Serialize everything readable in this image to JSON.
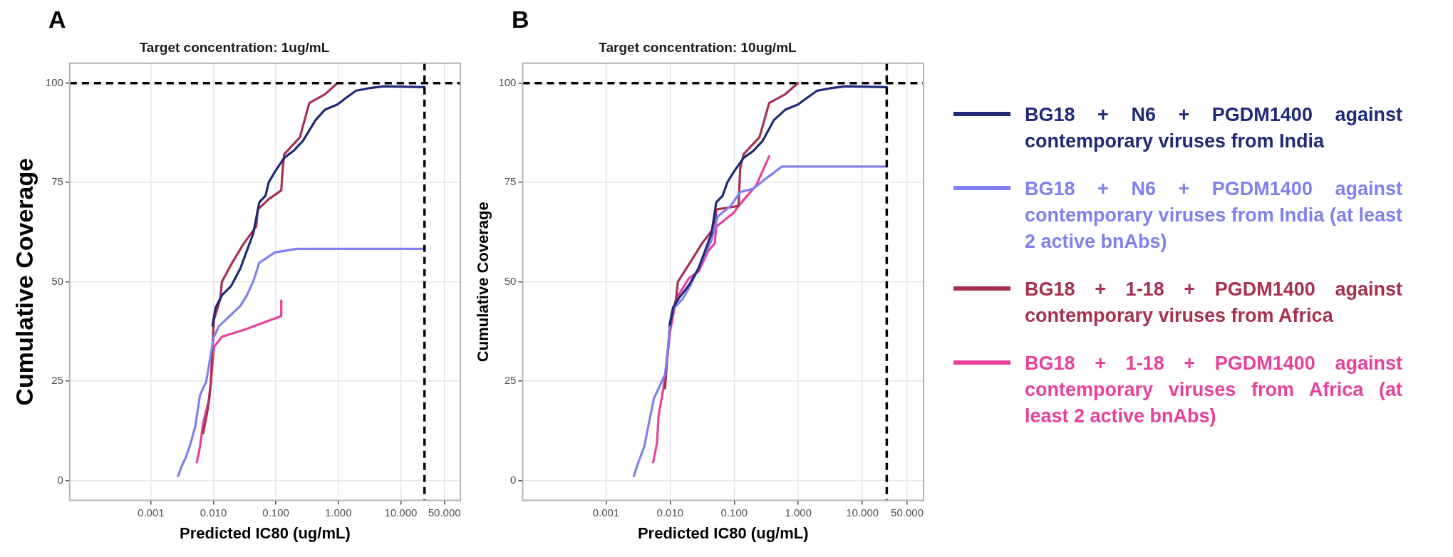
{
  "chart_data": [
    {
      "type": "line",
      "title": "Target concentration: 1ug/mL",
      "xlabel": "Predicted IC80 (ug/mL)",
      "ylabel": "Cumulative Coverage",
      "annotations": [
        "A"
      ],
      "log": "x",
      "grid": true,
      "legend": false,
      "line_style": "solid",
      "marker": "none",
      "xlim": [
        5e-05,
        90
      ],
      "xticks": [
        {
          "value": 0.001,
          "label": "0.001"
        },
        {
          "value": 0.01,
          "label": "0.010"
        },
        {
          "value": 0.1,
          "label": "0.100"
        },
        {
          "value": 1,
          "label": "1.000"
        },
        {
          "value": 10,
          "label": "10.000"
        },
        {
          "value": 50,
          "label": "50.000"
        }
      ],
      "ylim": [
        -5,
        105
      ],
      "yticks": [
        0,
        25,
        50,
        75,
        100
      ],
      "ref_lines": [
        {
          "axis": "y",
          "value": 100,
          "color": "#000000",
          "line_style": "dashed"
        },
        {
          "axis": "x",
          "value": 24,
          "color": "#000000",
          "line_style": "dashed"
        }
      ],
      "series": [
        {
          "color": "#1f2a78",
          "x": [
            0.00966,
            0.01084,
            0.01365,
            0.0193,
            0.0272,
            0.0343,
            0.0432,
            0.0543,
            0.0684,
            0.0767,
            0.0966,
            0.136,
            0.193,
            0.272,
            0.432,
            0.61,
            0.966,
            1.36,
            1.93,
            3.05,
            5.43,
            24
          ],
          "values": [
            39,
            43.5,
            46.6,
            49,
            53.5,
            57.8,
            62,
            70,
            71.7,
            75,
            77.7,
            81.2,
            83,
            85.5,
            90.7,
            93.3,
            94.6,
            96.4,
            98.1,
            98.7,
            99.2,
            99
          ]
        },
        {
          "color": "#8080f0",
          "x": [
            0.00272,
            0.00305,
            0.00363,
            0.00432,
            0.00513,
            0.0061,
            0.00767,
            0.00912,
            0.0102,
            0.0122,
            0.0172,
            0.0272,
            0.0343,
            0.0432,
            0.0543,
            0.0966,
            0.216,
            24
          ],
          "values": [
            1.1,
            3.3,
            5.9,
            9.4,
            13.7,
            21.5,
            24.9,
            31.9,
            36.2,
            38.8,
            41,
            44,
            46.6,
            50,
            54.8,
            57.4,
            58.3,
            58.3
          ]
        },
        {
          "color": "#a83050",
          "x": [
            0.00684,
            0.00813,
            0.00912,
            0.00966,
            0.0102,
            0.0129,
            0.01365,
            0.0193,
            0.0305,
            0.0484,
            0.0513,
            0.0767,
            0.122,
            0.129,
            0.136,
            0.243,
            0.343,
            0.61,
            0.966
          ],
          "values": [
            11.9,
            18,
            24.9,
            33.6,
            40.5,
            45.7,
            50,
            54.4,
            59.6,
            63.9,
            68.2,
            70.8,
            73,
            78.6,
            82.1,
            86.4,
            95,
            97.2,
            100
          ]
        },
        {
          "color": "#e8409c",
          "x": [
            0.00543,
            0.0061,
            0.00684,
            0.00861,
            0.00966,
            0.0102,
            0.01365,
            0.0305,
            0.122,
            0.122
          ],
          "values": [
            4.6,
            8.5,
            14.5,
            20.6,
            29.3,
            33.6,
            36.2,
            37.9,
            41.4,
            45.3
          ]
        }
      ]
    },
    {
      "type": "line",
      "title": "Target concentration: 10ug/mL",
      "xlabel": "Predicted IC80 (ug/mL)",
      "ylabel": "Cumulative Coverage",
      "annotations": [
        "B"
      ],
      "log": "x",
      "grid": true,
      "legend": "right",
      "line_style": "solid",
      "marker": "none",
      "xlim": [
        5e-05,
        90
      ],
      "xticks": [
        {
          "value": 0.001,
          "label": "0.001"
        },
        {
          "value": 0.01,
          "label": "0.010"
        },
        {
          "value": 0.1,
          "label": "0.100"
        },
        {
          "value": 1,
          "label": "1.000"
        },
        {
          "value": 10,
          "label": "10.000"
        },
        {
          "value": 50,
          "label": "50.000"
        }
      ],
      "ylim": [
        -5,
        105
      ],
      "yticks": [
        0,
        25,
        50,
        75,
        100
      ],
      "ref_lines": [
        {
          "axis": "y",
          "value": 100,
          "color": "#000000",
          "line_style": "dashed"
        },
        {
          "axis": "x",
          "value": 24,
          "color": "#000000",
          "line_style": "dashed"
        }
      ],
      "series": [
        {
          "name": "BG18 + N6 + PGDM1400 against contemporary viruses from India",
          "color": "#1f2a78",
          "x": [
            0.00989,
            0.0111,
            0.014,
            0.0197,
            0.0279,
            0.0351,
            0.0442,
            0.0525,
            0.0661,
            0.0785,
            0.0989,
            0.14,
            0.197,
            0.279,
            0.417,
            0.624,
            0.989,
            1.4,
            1.97,
            3.13,
            5.56,
            24
          ],
          "values": [
            39.2,
            43.5,
            46.1,
            49.2,
            53.5,
            57.8,
            62.2,
            70,
            71.7,
            75.1,
            77.7,
            81.2,
            82.9,
            85.5,
            90.7,
            93.3,
            94.6,
            96.4,
            98.1,
            98.7,
            99.2,
            99
          ]
        },
        {
          "name": "BG18 + N6 + PGDM1400 against contemporary viruses from India (at least 2 active bnAbs)",
          "color": "#8080f0",
          "x": [
            0.00272,
            0.00313,
            0.00394,
            0.00468,
            0.00556,
            0.00661,
            0.00832,
            0.00933,
            0.00989,
            0.0111,
            0.0157,
            0.0209,
            0.0279,
            0.0351,
            0.0442,
            0.0556,
            0.0881,
            0.124,
            0.197,
            0.313,
            0.556,
            24
          ],
          "values": [
            1.1,
            4.2,
            8.5,
            14.5,
            20.6,
            23.2,
            26.7,
            33.6,
            39.7,
            43.1,
            45.7,
            49.2,
            53.5,
            57,
            60.4,
            66.5,
            69.1,
            72.6,
            73.4,
            76,
            79,
            79
          ]
        },
        {
          "name": "BG18 + 1-18 + PGDM1400 against contemporary viruses from Africa",
          "color": "#a83050",
          "x": [
            0.00832,
            0.00933,
            0.00989,
            0.0124,
            0.0132,
            0.0197,
            0.0313,
            0.0496,
            0.0525,
            0.117,
            0.124,
            0.14,
            0.248,
            0.351,
            0.624,
            0.989
          ],
          "values": [
            23.2,
            33.6,
            38.8,
            45.7,
            50,
            54.4,
            59.6,
            63.9,
            68.2,
            69.1,
            78.6,
            82.1,
            86.4,
            95,
            97.2,
            100
          ]
        },
        {
          "name": "BG18 + 1-18 + PGDM1400 against contemporary viruses from Africa (at least 2 active bnAbs)",
          "color": "#e8409c",
          "x": [
            0.00543,
            0.00624,
            0.00661,
            0.00785,
            0.00881,
            0.00989,
            0.0124,
            0.0197,
            0.0279,
            0.0394,
            0.0496,
            0.0525,
            0.0989,
            0.117,
            0.221,
            0.351
          ],
          "values": [
            4.6,
            9.4,
            16.3,
            23.2,
            29.3,
            37,
            45.7,
            50.9,
            52.6,
            57.8,
            59.6,
            63.9,
            67.4,
            69.1,
            74.3,
            81.6
          ]
        }
      ]
    }
  ]
}
